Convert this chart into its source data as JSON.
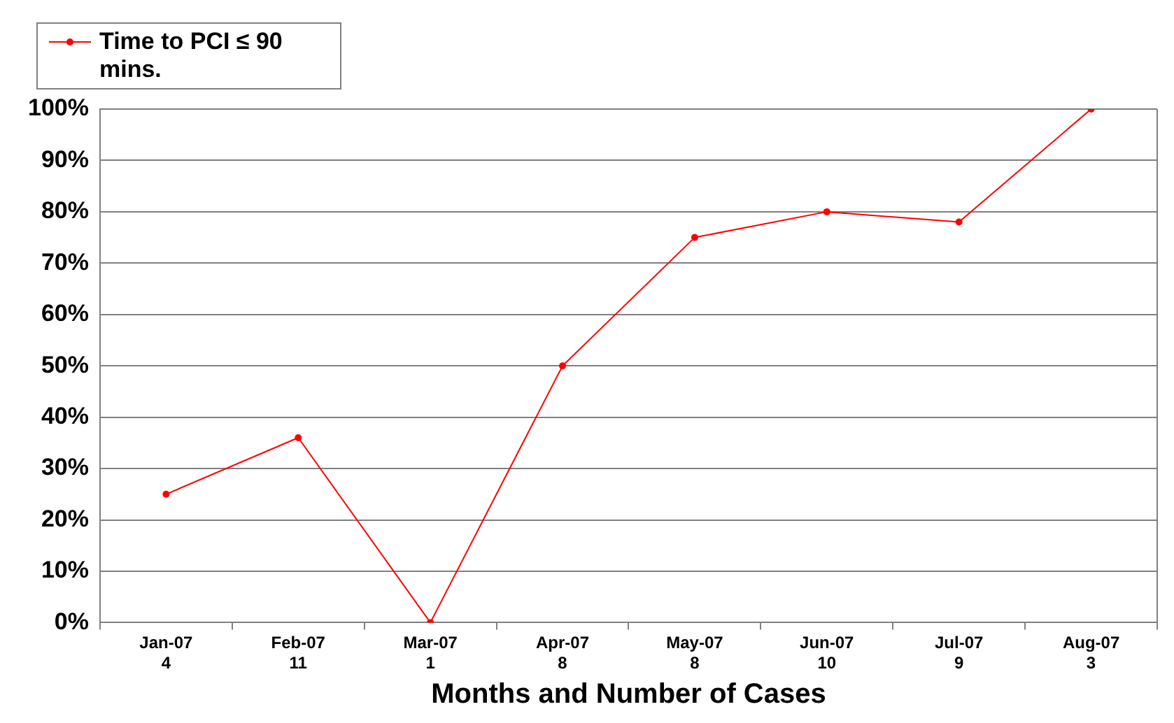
{
  "chart_data": {
    "type": "line",
    "xlabel": "Months and Number of Cases",
    "categories": [
      "Jan-07\n4",
      "Feb-07\n11",
      "Mar-07\n1",
      "Apr-07\n8",
      "May-07\n8",
      "Jun-07\n10",
      "Jul-07\n9",
      "Aug-07\n3"
    ],
    "series": [
      {
        "name": "Time to PCI ≤ 90 mins.",
        "color": "#ff0000",
        "values": [
          25,
          36,
          0,
          50,
          75,
          80,
          78,
          100
        ]
      }
    ],
    "ylim": [
      0,
      100
    ],
    "yticks": [
      {
        "value": 0,
        "label": "0%"
      },
      {
        "value": 10,
        "label": "10%"
      },
      {
        "value": 20,
        "label": "20%"
      },
      {
        "value": 30,
        "label": "30%"
      },
      {
        "value": 40,
        "label": "40%"
      },
      {
        "value": 50,
        "label": "50%"
      },
      {
        "value": 60,
        "label": "60%"
      },
      {
        "value": 70,
        "label": "70%"
      },
      {
        "value": 80,
        "label": "80%"
      },
      {
        "value": 90,
        "label": "90%"
      },
      {
        "value": 100,
        "label": "100%"
      }
    ],
    "grid": "y",
    "legend": "top left",
    "marker": "circle",
    "line_style": "solid"
  }
}
